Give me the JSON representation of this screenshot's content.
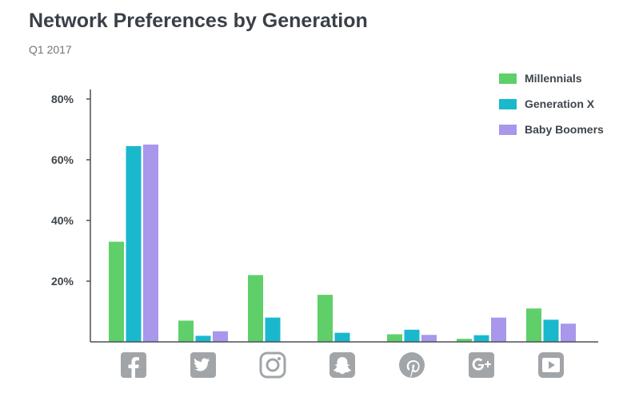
{
  "chart_data": {
    "type": "bar",
    "title": "Network Preferences by Generation",
    "subtitle": "Q1 2017",
    "categories": [
      "facebook-icon",
      "twitter-icon",
      "instagram-icon",
      "snapchat-icon",
      "pinterest-icon",
      "google-plus-icon",
      "youtube-icon"
    ],
    "series": [
      {
        "name": "Millennials",
        "color": "#5fcf6a",
        "values": [
          33,
          7,
          22,
          15.5,
          2.5,
          1,
          11
        ]
      },
      {
        "name": "Generation X",
        "color": "#1ab8cc",
        "values": [
          64.5,
          2,
          8,
          3,
          4,
          2.2,
          7.3
        ]
      },
      {
        "name": "Baby Boomers",
        "color": "#a897ea",
        "values": [
          65,
          3.5,
          0,
          0,
          2.3,
          8,
          6
        ]
      }
    ],
    "ylim": [
      0,
      80
    ],
    "yticks": [
      "20%",
      "40%",
      "60%",
      "80%"
    ],
    "grid": false,
    "legend_position": "top-right"
  }
}
